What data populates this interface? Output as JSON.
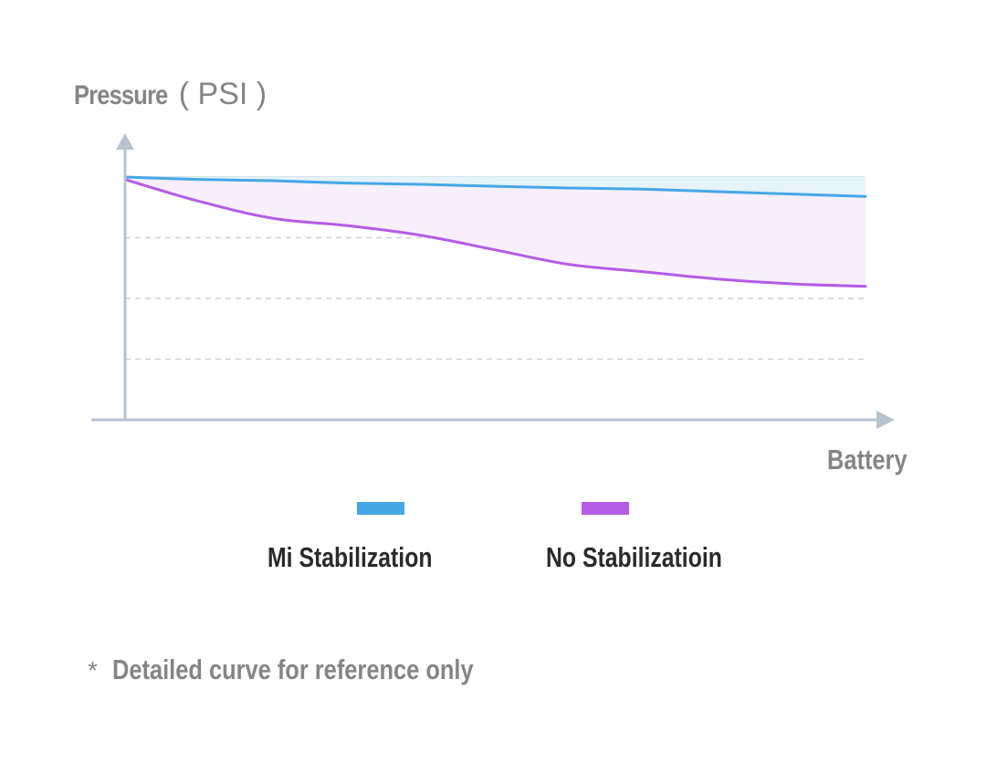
{
  "chart_data": {
    "type": "area",
    "title": "",
    "ylabel_main": "Pressure",
    "ylabel_unit": "( PSI )",
    "xlabel": "Battery",
    "x": [
      0,
      0.1,
      0.2,
      0.3,
      0.4,
      0.5,
      0.6,
      0.7,
      0.8,
      0.9,
      1.0
    ],
    "xlim": [
      0,
      1
    ],
    "ylim": [
      0,
      1
    ],
    "grid": "dashed horizontal",
    "legend_placement": "bottom",
    "series": [
      {
        "name": "Mi Stabilization",
        "color": "#45a7e6",
        "fill": "#e6f3fb",
        "values": [
          1.0,
          0.99,
          0.985,
          0.975,
          0.97,
          0.962,
          0.955,
          0.95,
          0.94,
          0.93,
          0.92
        ]
      },
      {
        "name": "No Stabilizatioin",
        "color": "#b55be6",
        "fill": "#f7effc",
        "values": [
          0.99,
          0.9,
          0.83,
          0.8,
          0.76,
          0.7,
          0.64,
          0.61,
          0.58,
          0.56,
          0.55
        ]
      }
    ]
  },
  "note": {
    "star": "*",
    "text": "Detailed curve for reference only"
  }
}
